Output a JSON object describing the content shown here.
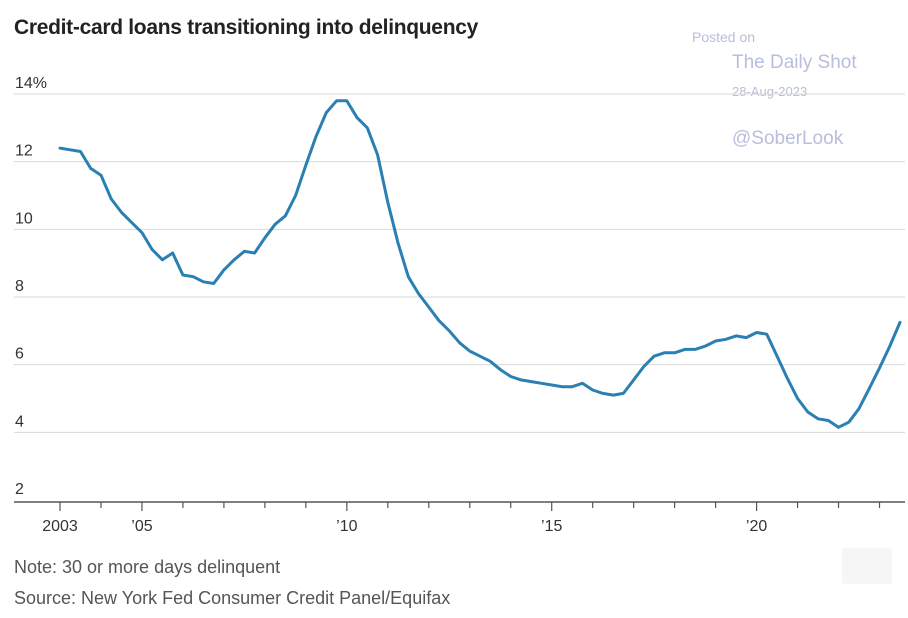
{
  "header": {
    "title": "Credit-card loans transitioning into delinquency"
  },
  "watermark": {
    "posted": "Posted on",
    "name": "The Daily Shot",
    "date": "28-Aug-2023",
    "handle": "@SoberLook"
  },
  "footer": {
    "note": "Note: 30 or more days delinquent",
    "source": "Source: New York Fed Consumer Credit Panel/Equifax"
  },
  "colors": {
    "line": "#2a7fb3",
    "grid": "#d9d9d9",
    "axis_text": "#333333"
  },
  "chart_data": {
    "type": "line",
    "title": "Credit-card loans transitioning into delinquency",
    "xlabel": "",
    "ylabel": "",
    "xlim": [
      2003,
      2023.5
    ],
    "ylim": [
      2,
      14
    ],
    "grid": true,
    "y_ticks": [
      {
        "value": 14,
        "label": "14%"
      },
      {
        "value": 12,
        "label": "12"
      },
      {
        "value": 10,
        "label": "10"
      },
      {
        "value": 8,
        "label": "8"
      },
      {
        "value": 6,
        "label": "6"
      },
      {
        "value": 4,
        "label": "4"
      },
      {
        "value": 2,
        "label": "2"
      }
    ],
    "x_ticks": [
      {
        "value": 2003,
        "label": "2003"
      },
      {
        "value": 2005,
        "label": "’05"
      },
      {
        "value": 2010,
        "label": "’10"
      },
      {
        "value": 2015,
        "label": "’15"
      },
      {
        "value": 2020,
        "label": "’20"
      }
    ],
    "x_minor_ticks": [
      2004,
      2006,
      2007,
      2008,
      2009,
      2011,
      2012,
      2013,
      2014,
      2016,
      2017,
      2018,
      2019,
      2021,
      2022,
      2023
    ],
    "series": [
      {
        "x": [
          2003.0,
          2003.25,
          2003.5,
          2003.75,
          2004.0,
          2004.25,
          2004.5,
          2004.75,
          2005.0,
          2005.25,
          2005.5,
          2005.75,
          2006.0,
          2006.25,
          2006.5,
          2006.75,
          2007.0,
          2007.25,
          2007.5,
          2007.75,
          2008.0,
          2008.25,
          2008.5,
          2008.75,
          2009.0,
          2009.25,
          2009.5,
          2009.75,
          2010.0,
          2010.25,
          2010.5,
          2010.75,
          2011.0,
          2011.25,
          2011.5,
          2011.75,
          2012.0,
          2012.25,
          2012.5,
          2012.75,
          2013.0,
          2013.25,
          2013.5,
          2013.75,
          2014.0,
          2014.25,
          2014.5,
          2014.75,
          2015.0,
          2015.25,
          2015.5,
          2015.75,
          2016.0,
          2016.25,
          2016.5,
          2016.75,
          2017.0,
          2017.25,
          2017.5,
          2017.75,
          2018.0,
          2018.25,
          2018.5,
          2018.75,
          2019.0,
          2019.25,
          2019.5,
          2019.75,
          2020.0,
          2020.25,
          2020.5,
          2020.75,
          2021.0,
          2021.25,
          2021.5,
          2021.75,
          2022.0,
          2022.25,
          2022.5,
          2022.75,
          2023.0,
          2023.25,
          2023.5
        ],
        "values": [
          12.4,
          12.35,
          12.3,
          11.8,
          11.6,
          10.9,
          10.5,
          10.2,
          9.9,
          9.4,
          9.1,
          9.3,
          8.65,
          8.6,
          8.45,
          8.4,
          8.8,
          9.1,
          9.35,
          9.3,
          9.75,
          10.15,
          10.4,
          11.0,
          11.9,
          12.75,
          13.45,
          13.8,
          13.8,
          13.3,
          13.0,
          12.2,
          10.8,
          9.6,
          8.6,
          8.1,
          7.7,
          7.3,
          7.0,
          6.65,
          6.4,
          6.25,
          6.1,
          5.85,
          5.65,
          5.55,
          5.5,
          5.45,
          5.4,
          5.35,
          5.35,
          5.45,
          5.25,
          5.15,
          5.1,
          5.15,
          5.55,
          5.95,
          6.25,
          6.35,
          6.35,
          6.45,
          6.45,
          6.55,
          6.7,
          6.75,
          6.85,
          6.8,
          6.95,
          6.9,
          6.25,
          5.6,
          5.0,
          4.6,
          4.4,
          4.35,
          4.15,
          4.3,
          4.7,
          5.3,
          5.9,
          6.55,
          7.25
        ]
      }
    ]
  }
}
